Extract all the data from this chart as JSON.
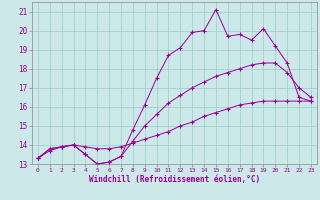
{
  "xlabel": "Windchill (Refroidissement éolien,°C)",
  "bg_color": "#cce8e8",
  "grid_color": "#99cccc",
  "line_color": "#990099",
  "xlim": [
    -0.5,
    23.5
  ],
  "ylim": [
    13,
    21.5
  ],
  "xticks": [
    0,
    1,
    2,
    3,
    4,
    5,
    6,
    7,
    8,
    9,
    10,
    11,
    12,
    13,
    14,
    15,
    16,
    17,
    18,
    19,
    20,
    21,
    22,
    23
  ],
  "yticks": [
    13,
    14,
    15,
    16,
    17,
    18,
    19,
    20,
    21
  ],
  "series": [
    {
      "x": [
        0,
        1,
        2,
        3,
        4,
        5,
        6,
        7,
        8,
        9,
        10,
        11,
        12,
        13,
        14,
        15,
        16,
        17,
        18,
        19,
        20,
        21,
        22,
        23
      ],
      "y": [
        13.3,
        13.7,
        13.9,
        14.0,
        13.9,
        13.8,
        13.8,
        13.9,
        14.1,
        14.3,
        14.5,
        14.7,
        15.0,
        15.2,
        15.5,
        15.7,
        15.9,
        16.1,
        16.2,
        16.3,
        16.3,
        16.3,
        16.3,
        16.3
      ]
    },
    {
      "x": [
        0,
        1,
        2,
        3,
        4,
        5,
        6,
        7,
        8,
        9,
        10,
        11,
        12,
        13,
        14,
        15,
        16,
        17,
        18,
        19,
        20,
        21,
        22,
        23
      ],
      "y": [
        13.3,
        13.8,
        13.9,
        14.0,
        13.5,
        13.0,
        13.1,
        13.4,
        14.2,
        15.0,
        15.6,
        16.2,
        16.6,
        17.0,
        17.3,
        17.6,
        17.8,
        18.0,
        18.2,
        18.3,
        18.3,
        17.8,
        17.0,
        16.5
      ]
    },
    {
      "x": [
        0,
        1,
        2,
        3,
        4,
        5,
        6,
        7,
        8,
        9,
        10,
        11,
        12,
        13,
        14,
        15,
        16,
        17,
        18,
        19,
        20,
        21,
        22,
        23
      ],
      "y": [
        13.3,
        13.8,
        13.9,
        14.0,
        13.5,
        13.0,
        13.1,
        13.4,
        14.8,
        16.1,
        17.5,
        18.7,
        19.1,
        19.9,
        20.0,
        21.1,
        19.7,
        19.8,
        19.5,
        20.1,
        19.2,
        18.3,
        16.5,
        16.3
      ]
    }
  ]
}
